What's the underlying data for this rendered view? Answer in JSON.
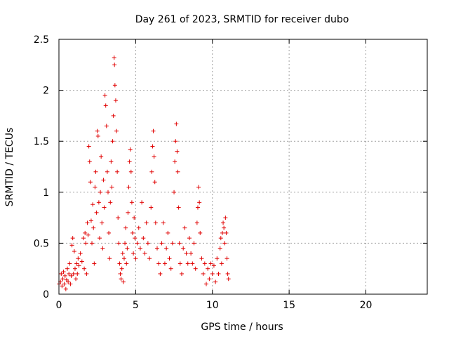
{
  "chart_data": {
    "type": "scatter",
    "title": "Day 261 of 2023, SRMTID for receiver dubo",
    "xlabel": "GPS time / hours",
    "ylabel": "SRMTID / TECUs",
    "xlim": [
      0,
      24
    ],
    "ylim": [
      0,
      2.5
    ],
    "xticks": [
      0,
      5,
      10,
      15,
      20
    ],
    "xtick_labels": [
      "0",
      "5",
      "10",
      "15",
      "20"
    ],
    "yticks": [
      0,
      0.5,
      1,
      1.5,
      2,
      2.5
    ],
    "ytick_labels": [
      "0",
      "0.5",
      "1",
      "1.5",
      "2",
      "2.5"
    ],
    "grid": true,
    "marker": "+",
    "color": "#e00000",
    "series": [
      {
        "name": "dubo",
        "points": [
          [
            0.0,
            0.1
          ],
          [
            0.1,
            0.12
          ],
          [
            0.15,
            0.2
          ],
          [
            0.2,
            0.08
          ],
          [
            0.25,
            0.15
          ],
          [
            0.3,
            0.22
          ],
          [
            0.35,
            0.1
          ],
          [
            0.4,
            0.18
          ],
          [
            0.45,
            0.05
          ],
          [
            0.5,
            0.14
          ],
          [
            0.55,
            0.25
          ],
          [
            0.6,
            0.12
          ],
          [
            0.65,
            0.2
          ],
          [
            0.7,
            0.3
          ],
          [
            0.75,
            0.1
          ],
          [
            0.8,
            0.18
          ],
          [
            0.85,
            0.48
          ],
          [
            0.9,
            0.55
          ],
          [
            0.95,
            0.2
          ],
          [
            1.0,
            0.42
          ],
          [
            1.05,
            0.25
          ],
          [
            1.1,
            0.15
          ],
          [
            1.15,
            0.3
          ],
          [
            1.2,
            0.2
          ],
          [
            1.25,
            0.35
          ],
          [
            1.3,
            0.28
          ],
          [
            1.4,
            0.4
          ],
          [
            1.5,
            0.32
          ],
          [
            1.6,
            0.55
          ],
          [
            1.65,
            0.25
          ],
          [
            1.7,
            0.6
          ],
          [
            1.75,
            0.5
          ],
          [
            1.8,
            0.2
          ],
          [
            1.85,
            0.7
          ],
          [
            1.9,
            0.58
          ],
          [
            1.95,
            1.45
          ],
          [
            2.0,
            1.3
          ],
          [
            2.05,
            1.1
          ],
          [
            2.1,
            0.72
          ],
          [
            2.15,
            0.5
          ],
          [
            2.2,
            0.88
          ],
          [
            2.25,
            0.65
          ],
          [
            2.3,
            0.3
          ],
          [
            2.35,
            1.05
          ],
          [
            2.4,
            1.2
          ],
          [
            2.45,
            0.8
          ],
          [
            2.5,
            1.6
          ],
          [
            2.55,
            1.55
          ],
          [
            2.6,
            0.9
          ],
          [
            2.65,
            0.55
          ],
          [
            2.7,
            1.0
          ],
          [
            2.75,
            1.35
          ],
          [
            2.8,
            0.7
          ],
          [
            2.85,
            0.45
          ],
          [
            2.9,
            1.12
          ],
          [
            2.95,
            0.85
          ],
          [
            3.0,
            1.95
          ],
          [
            3.05,
            1.85
          ],
          [
            3.1,
            1.65
          ],
          [
            3.15,
            1.2
          ],
          [
            3.2,
            1.0
          ],
          [
            3.25,
            0.6
          ],
          [
            3.3,
            0.35
          ],
          [
            3.35,
            0.9
          ],
          [
            3.4,
            1.3
          ],
          [
            3.45,
            1.05
          ],
          [
            3.5,
            1.5
          ],
          [
            3.55,
            1.75
          ],
          [
            3.6,
            2.32
          ],
          [
            3.62,
            2.25
          ],
          [
            3.65,
            2.05
          ],
          [
            3.7,
            1.9
          ],
          [
            3.75,
            1.6
          ],
          [
            3.8,
            1.2
          ],
          [
            3.85,
            0.75
          ],
          [
            3.9,
            0.5
          ],
          [
            3.95,
            0.3
          ],
          [
            4.0,
            0.2
          ],
          [
            4.05,
            0.15
          ],
          [
            4.1,
            0.25
          ],
          [
            4.15,
            0.4
          ],
          [
            4.2,
            0.12
          ],
          [
            4.25,
            0.35
          ],
          [
            4.3,
            0.5
          ],
          [
            4.35,
            0.65
          ],
          [
            4.4,
            0.3
          ],
          [
            4.45,
            0.45
          ],
          [
            4.5,
            0.8
          ],
          [
            4.55,
            1.05
          ],
          [
            4.6,
            1.3
          ],
          [
            4.65,
            1.42
          ],
          [
            4.7,
            1.2
          ],
          [
            4.75,
            0.9
          ],
          [
            4.8,
            0.6
          ],
          [
            4.85,
            0.4
          ],
          [
            4.9,
            0.75
          ],
          [
            4.95,
            0.55
          ],
          [
            5.0,
            0.35
          ],
          [
            5.1,
            0.5
          ],
          [
            5.2,
            0.65
          ],
          [
            5.3,
            0.45
          ],
          [
            5.4,
            0.9
          ],
          [
            5.5,
            0.55
          ],
          [
            5.6,
            0.4
          ],
          [
            5.7,
            0.7
          ],
          [
            5.8,
            0.5
          ],
          [
            5.9,
            0.35
          ],
          [
            6.0,
            0.85
          ],
          [
            6.05,
            1.2
          ],
          [
            6.1,
            1.45
          ],
          [
            6.15,
            1.6
          ],
          [
            6.2,
            1.35
          ],
          [
            6.25,
            1.1
          ],
          [
            6.3,
            0.7
          ],
          [
            6.4,
            0.45
          ],
          [
            6.5,
            0.3
          ],
          [
            6.6,
            0.2
          ],
          [
            6.7,
            0.5
          ],
          [
            6.8,
            0.7
          ],
          [
            6.9,
            0.3
          ],
          [
            7.0,
            0.45
          ],
          [
            7.1,
            0.6
          ],
          [
            7.2,
            0.35
          ],
          [
            7.3,
            0.25
          ],
          [
            7.4,
            0.5
          ],
          [
            7.5,
            1.0
          ],
          [
            7.55,
            1.3
          ],
          [
            7.6,
            1.5
          ],
          [
            7.65,
            1.67
          ],
          [
            7.7,
            1.4
          ],
          [
            7.75,
            1.2
          ],
          [
            7.8,
            0.85
          ],
          [
            7.85,
            0.5
          ],
          [
            7.9,
            0.3
          ],
          [
            8.0,
            0.2
          ],
          [
            8.1,
            0.45
          ],
          [
            8.2,
            0.65
          ],
          [
            8.3,
            0.4
          ],
          [
            8.4,
            0.3
          ],
          [
            8.5,
            0.55
          ],
          [
            8.6,
            0.4
          ],
          [
            8.7,
            0.3
          ],
          [
            8.8,
            0.5
          ],
          [
            8.9,
            0.25
          ],
          [
            9.0,
            0.7
          ],
          [
            9.05,
            0.85
          ],
          [
            9.1,
            1.05
          ],
          [
            9.15,
            0.9
          ],
          [
            9.2,
            0.6
          ],
          [
            9.3,
            0.35
          ],
          [
            9.4,
            0.2
          ],
          [
            9.5,
            0.3
          ],
          [
            9.6,
            0.1
          ],
          [
            9.7,
            0.25
          ],
          [
            9.8,
            0.15
          ],
          [
            9.9,
            0.3
          ],
          [
            10.0,
            0.2
          ],
          [
            10.1,
            0.28
          ],
          [
            10.2,
            0.12
          ],
          [
            10.3,
            0.35
          ],
          [
            10.4,
            0.2
          ],
          [
            10.5,
            0.45
          ],
          [
            10.55,
            0.55
          ],
          [
            10.6,
            0.3
          ],
          [
            10.65,
            0.6
          ],
          [
            10.7,
            0.7
          ],
          [
            10.75,
            0.65
          ],
          [
            10.8,
            0.5
          ],
          [
            10.85,
            0.75
          ],
          [
            10.9,
            0.6
          ],
          [
            10.95,
            0.35
          ],
          [
            11.0,
            0.2
          ],
          [
            11.05,
            0.15
          ]
        ]
      }
    ]
  }
}
